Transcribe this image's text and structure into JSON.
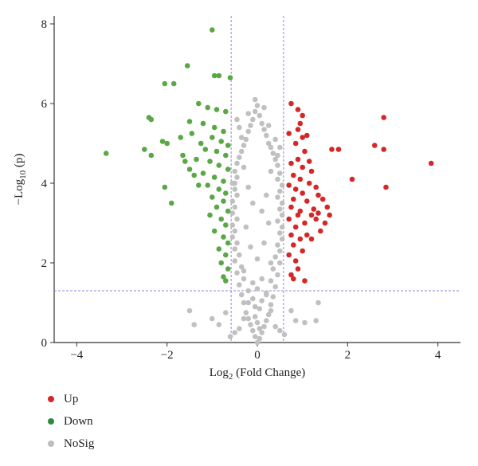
{
  "chart_data": {
    "type": "scatter",
    "title": "",
    "xlabel": "Log",
    "xlabel_sub": "2",
    "xlabel_rest": " (Fold Change)",
    "ylabel": "−Log",
    "ylabel_sub": "10",
    "ylabel_rest": " (p)",
    "xlim": [
      -4.5,
      4.5
    ],
    "ylim": [
      0,
      8.2
    ],
    "xticks": [
      -4,
      -2,
      0,
      2,
      4
    ],
    "yticks": [
      0,
      2,
      4,
      6,
      8
    ],
    "thresholds": {
      "log2fc": 0.58,
      "neg_log10_p": 1.3
    },
    "legend_position": "bottom-left",
    "colors": {
      "Up": "#d62728",
      "Down": "#5aa845",
      "NoSig": "#c0c0c0",
      "threshold": "#8888dd"
    },
    "series": [
      {
        "name": "Up",
        "points": [
          [
            0.75,
            6.0
          ],
          [
            0.9,
            5.85
          ],
          [
            1.0,
            5.7
          ],
          [
            0.95,
            5.5
          ],
          [
            1.1,
            5.2
          ],
          [
            0.7,
            5.25
          ],
          [
            0.85,
            5.0
          ],
          [
            1.05,
            4.8
          ],
          [
            0.9,
            4.6
          ],
          [
            0.75,
            4.5
          ],
          [
            1.0,
            4.4
          ],
          [
            1.2,
            4.3
          ],
          [
            0.8,
            4.2
          ],
          [
            0.95,
            4.1
          ],
          [
            1.15,
            4.0
          ],
          [
            0.7,
            3.95
          ],
          [
            0.85,
            3.85
          ],
          [
            1.3,
            3.9
          ],
          [
            1.0,
            3.75
          ],
          [
            0.8,
            3.6
          ],
          [
            1.1,
            3.55
          ],
          [
            0.75,
            3.4
          ],
          [
            0.95,
            3.3
          ],
          [
            1.25,
            3.35
          ],
          [
            0.9,
            3.2
          ],
          [
            0.7,
            3.1
          ],
          [
            1.05,
            3.0
          ],
          [
            0.85,
            2.9
          ],
          [
            1.2,
            3.2
          ],
          [
            0.75,
            2.7
          ],
          [
            0.95,
            2.6
          ],
          [
            0.8,
            2.45
          ],
          [
            1.0,
            2.3
          ],
          [
            0.7,
            2.2
          ],
          [
            0.85,
            2.05
          ],
          [
            0.9,
            1.85
          ],
          [
            0.75,
            1.7
          ],
          [
            1.05,
            1.55
          ],
          [
            0.8,
            1.6
          ],
          [
            1.45,
            3.6
          ],
          [
            1.3,
            3.1
          ],
          [
            1.5,
            3.0
          ],
          [
            1.6,
            3.2
          ],
          [
            1.4,
            2.8
          ],
          [
            1.35,
            3.25
          ],
          [
            1.55,
            3.4
          ],
          [
            1.65,
            4.85
          ],
          [
            1.8,
            4.85
          ],
          [
            2.1,
            4.1
          ],
          [
            2.6,
            4.95
          ],
          [
            2.8,
            5.65
          ],
          [
            2.8,
            4.85
          ],
          [
            2.85,
            3.9
          ],
          [
            3.85,
            4.5
          ],
          [
            1.35,
            3.7
          ],
          [
            1.2,
            2.6
          ],
          [
            1.1,
            2.7
          ],
          [
            1.0,
            5.15
          ],
          [
            0.9,
            5.35
          ],
          [
            1.15,
            4.55
          ]
        ]
      },
      {
        "name": "Down",
        "points": [
          [
            -1.0,
            7.85
          ],
          [
            -1.55,
            6.95
          ],
          [
            -2.05,
            6.5
          ],
          [
            -1.85,
            6.5
          ],
          [
            -0.95,
            6.7
          ],
          [
            -0.85,
            6.7
          ],
          [
            -0.6,
            6.65
          ],
          [
            -1.3,
            6.0
          ],
          [
            -1.1,
            5.9
          ],
          [
            -0.9,
            5.85
          ],
          [
            -0.7,
            5.8
          ],
          [
            -1.5,
            5.55
          ],
          [
            -1.2,
            5.5
          ],
          [
            -0.95,
            5.4
          ],
          [
            -0.75,
            5.3
          ],
          [
            -1.0,
            5.15
          ],
          [
            -0.8,
            5.05
          ],
          [
            -0.65,
            4.95
          ],
          [
            -1.15,
            4.85
          ],
          [
            -0.9,
            4.8
          ],
          [
            -0.7,
            4.7
          ],
          [
            -1.35,
            4.6
          ],
          [
            -1.05,
            4.55
          ],
          [
            -0.85,
            4.45
          ],
          [
            -0.65,
            4.35
          ],
          [
            -1.2,
            4.25
          ],
          [
            -0.95,
            4.15
          ],
          [
            -0.75,
            4.05
          ],
          [
            -1.1,
            3.95
          ],
          [
            -0.85,
            3.85
          ],
          [
            -0.7,
            3.75
          ],
          [
            -1.0,
            3.65
          ],
          [
            -0.75,
            3.55
          ],
          [
            -0.9,
            3.4
          ],
          [
            -0.65,
            3.3
          ],
          [
            -1.05,
            3.2
          ],
          [
            -0.8,
            3.1
          ],
          [
            -0.7,
            2.95
          ],
          [
            -0.95,
            2.8
          ],
          [
            -0.75,
            2.65
          ],
          [
            -0.65,
            2.5
          ],
          [
            -0.85,
            2.35
          ],
          [
            -0.7,
            2.2
          ],
          [
            -0.8,
            2.0
          ],
          [
            -0.65,
            1.85
          ],
          [
            -0.75,
            1.65
          ],
          [
            -0.7,
            1.55
          ],
          [
            -2.4,
            5.65
          ],
          [
            -2.35,
            5.6
          ],
          [
            -2.5,
            4.85
          ],
          [
            -2.35,
            4.7
          ],
          [
            -2.1,
            5.05
          ],
          [
            -2.0,
            5.0
          ],
          [
            -1.7,
            5.15
          ],
          [
            -1.65,
            4.7
          ],
          [
            -1.6,
            4.55
          ],
          [
            -1.5,
            4.35
          ],
          [
            -1.4,
            4.2
          ],
          [
            -1.3,
            3.95
          ],
          [
            -2.05,
            3.9
          ],
          [
            -1.9,
            3.5
          ],
          [
            -3.35,
            4.75
          ],
          [
            -1.25,
            5.0
          ],
          [
            -1.45,
            5.25
          ]
        ]
      },
      {
        "name": "NoSig",
        "points": [
          [
            0.0,
            0.0
          ],
          [
            0.05,
            0.1
          ],
          [
            -0.05,
            0.15
          ],
          [
            0.1,
            0.25
          ],
          [
            -0.1,
            0.3
          ],
          [
            0.15,
            0.4
          ],
          [
            -0.15,
            0.45
          ],
          [
            0.2,
            0.55
          ],
          [
            -0.2,
            0.6
          ],
          [
            0.0,
            0.5
          ],
          [
            0.25,
            0.7
          ],
          [
            -0.25,
            0.75
          ],
          [
            0.05,
            0.85
          ],
          [
            -0.05,
            0.9
          ],
          [
            0.3,
            0.95
          ],
          [
            -0.3,
            1.0
          ],
          [
            0.1,
            1.05
          ],
          [
            -0.1,
            1.1
          ],
          [
            0.35,
            1.15
          ],
          [
            -0.35,
            1.2
          ],
          [
            0.2,
            1.25
          ],
          [
            -0.2,
            1.3
          ],
          [
            0.4,
            1.4
          ],
          [
            -0.4,
            1.45
          ],
          [
            0.3,
            1.55
          ],
          [
            -0.3,
            1.6
          ],
          [
            0.45,
            1.7
          ],
          [
            -0.45,
            1.75
          ],
          [
            0.35,
            1.85
          ],
          [
            -0.35,
            1.9
          ],
          [
            0.5,
            2.0
          ],
          [
            -0.5,
            2.05
          ],
          [
            0.4,
            2.15
          ],
          [
            -0.4,
            2.2
          ],
          [
            0.5,
            2.3
          ],
          [
            -0.5,
            2.35
          ],
          [
            0.45,
            2.45
          ],
          [
            -0.45,
            2.5
          ],
          [
            0.55,
            2.6
          ],
          [
            -0.55,
            2.65
          ],
          [
            0.5,
            2.75
          ],
          [
            -0.5,
            2.8
          ],
          [
            0.55,
            2.9
          ],
          [
            -0.55,
            2.95
          ],
          [
            0.45,
            3.05
          ],
          [
            -0.45,
            3.1
          ],
          [
            0.55,
            3.2
          ],
          [
            -0.55,
            3.25
          ],
          [
            0.5,
            3.35
          ],
          [
            -0.5,
            3.4
          ],
          [
            0.55,
            3.5
          ],
          [
            -0.55,
            3.55
          ],
          [
            0.45,
            3.65
          ],
          [
            -0.45,
            3.7
          ],
          [
            0.5,
            3.8
          ],
          [
            -0.5,
            3.85
          ],
          [
            0.55,
            3.95
          ],
          [
            -0.55,
            4.0
          ],
          [
            0.45,
            4.1
          ],
          [
            -0.45,
            4.15
          ],
          [
            0.5,
            4.25
          ],
          [
            -0.5,
            4.3
          ],
          [
            0.45,
            4.45
          ],
          [
            -0.45,
            4.5
          ],
          [
            0.4,
            4.6
          ],
          [
            -0.4,
            4.65
          ],
          [
            0.35,
            4.75
          ],
          [
            -0.35,
            4.8
          ],
          [
            0.3,
            4.9
          ],
          [
            -0.3,
            4.95
          ],
          [
            0.25,
            5.0
          ],
          [
            -0.25,
            5.1
          ],
          [
            0.2,
            5.2
          ],
          [
            -0.2,
            5.3
          ],
          [
            0.15,
            5.35
          ],
          [
            -0.15,
            5.45
          ],
          [
            0.1,
            5.5
          ],
          [
            -0.1,
            5.6
          ],
          [
            0.05,
            5.7
          ],
          [
            -0.05,
            5.8
          ],
          [
            0.0,
            5.95
          ],
          [
            -0.05,
            6.1
          ],
          [
            -0.45,
            5.6
          ],
          [
            0.15,
            5.9
          ],
          [
            0.4,
            5.1
          ],
          [
            -0.4,
            5.4
          ],
          [
            0.5,
            4.9
          ],
          [
            0.3,
            4.3
          ],
          [
            -0.3,
            4.4
          ],
          [
            0.2,
            3.7
          ],
          [
            -0.2,
            3.9
          ],
          [
            0.1,
            3.3
          ],
          [
            -0.1,
            3.5
          ],
          [
            0.25,
            3.0
          ],
          [
            -0.25,
            2.9
          ],
          [
            0.15,
            2.5
          ],
          [
            -0.15,
            2.4
          ],
          [
            0.3,
            2.0
          ],
          [
            -0.3,
            1.8
          ],
          [
            0.1,
            1.6
          ],
          [
            -0.1,
            1.5
          ],
          [
            0.2,
            1.2
          ],
          [
            -0.2,
            1.0
          ],
          [
            0.3,
            0.8
          ],
          [
            -0.3,
            0.6
          ],
          [
            0.4,
            0.4
          ],
          [
            -0.4,
            0.35
          ],
          [
            0.5,
            0.3
          ],
          [
            -0.5,
            0.25
          ],
          [
            0.6,
            0.2
          ],
          [
            -0.6,
            0.15
          ],
          [
            0.05,
            0.35
          ],
          [
            -0.05,
            0.65
          ],
          [
            0.0,
            1.35
          ],
          [
            0.0,
            2.1
          ],
          [
            0.85,
            0.55
          ],
          [
            1.05,
            0.5
          ],
          [
            1.3,
            0.55
          ],
          [
            1.35,
            1.0
          ],
          [
            0.75,
            0.8
          ],
          [
            -1.5,
            0.8
          ],
          [
            -1.4,
            0.45
          ],
          [
            -1.0,
            0.6
          ],
          [
            -0.85,
            0.45
          ],
          [
            -0.7,
            0.75
          ],
          [
            -0.2,
            5.75
          ],
          [
            0.25,
            5.45
          ],
          [
            -0.35,
            5.15
          ],
          [
            0.45,
            4.7
          ],
          [
            -0.5,
            4.0
          ]
        ]
      }
    ]
  }
}
